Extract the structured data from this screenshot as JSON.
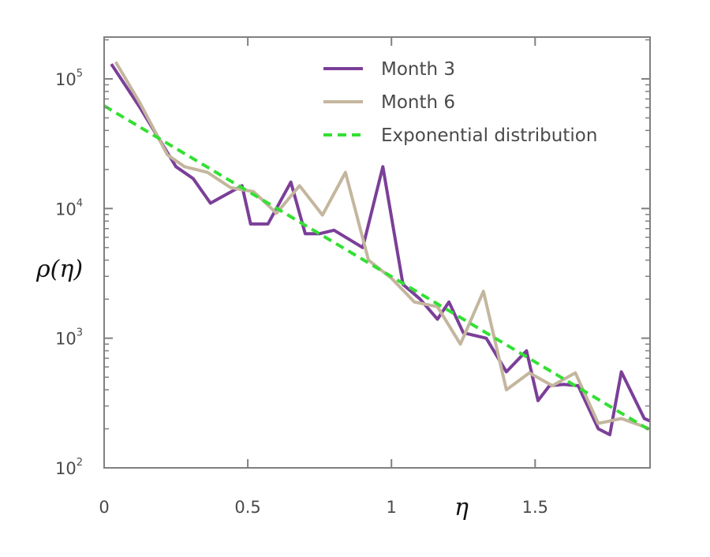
{
  "chart_data": {
    "type": "line",
    "xlabel": "η",
    "ylabel": "ρ(η)",
    "yscale": "log",
    "xlim": [
      0,
      1.9
    ],
    "ylim": [
      100,
      210000
    ],
    "grid": false,
    "legend_position": "top-right",
    "x_ticks": [
      {
        "value": 0,
        "label": "0"
      },
      {
        "value": 0.5,
        "label": "0.5"
      },
      {
        "value": 1,
        "label": "1"
      },
      {
        "value": 1.5,
        "label": "1.5"
      }
    ],
    "y_ticks": [
      {
        "value": 100,
        "base": "10",
        "exp": "2"
      },
      {
        "value": 1000,
        "base": "10",
        "exp": "3"
      },
      {
        "value": 10000,
        "base": "10",
        "exp": "4"
      },
      {
        "value": 100000,
        "base": "10",
        "exp": "5"
      }
    ],
    "series": [
      {
        "name": "Month 3",
        "color": "#7b3f98",
        "style": "solid",
        "x": [
          0.025,
          0.125,
          0.25,
          0.31,
          0.37,
          0.48,
          0.51,
          0.57,
          0.65,
          0.7,
          0.75,
          0.8,
          0.9,
          0.97,
          1.04,
          1.1,
          1.16,
          1.2,
          1.25,
          1.33,
          1.4,
          1.47,
          1.51,
          1.55,
          1.6,
          1.65,
          1.72,
          1.76,
          1.8,
          1.88,
          1.9
        ],
        "y": [
          130000,
          60000,
          21000,
          17000,
          11000,
          15000,
          7600,
          7600,
          16000,
          6400,
          6400,
          6800,
          5000,
          21000,
          2600,
          2000,
          1400,
          1900,
          1100,
          1000,
          550,
          800,
          330,
          430,
          440,
          430,
          200,
          180,
          550,
          240,
          230
        ]
      },
      {
        "name": "Month 6",
        "color": "#c4b69e",
        "style": "solid",
        "x": [
          0.04,
          0.125,
          0.22,
          0.28,
          0.36,
          0.44,
          0.52,
          0.6,
          0.68,
          0.76,
          0.84,
          0.92,
          1.0,
          1.08,
          1.16,
          1.24,
          1.32,
          1.4,
          1.48,
          1.56,
          1.64,
          1.72,
          1.8,
          1.9
        ],
        "y": [
          135000,
          65000,
          26000,
          21000,
          19000,
          14500,
          13500,
          9200,
          15000,
          8900,
          19000,
          4000,
          2900,
          1900,
          1750,
          900,
          2300,
          400,
          540,
          430,
          540,
          220,
          240,
          200
        ]
      },
      {
        "name": "Exponential distribution",
        "color": "#33e033",
        "style": "dashed",
        "x": [
          0,
          1.9
        ],
        "y": [
          62000,
          195
        ]
      }
    ]
  }
}
